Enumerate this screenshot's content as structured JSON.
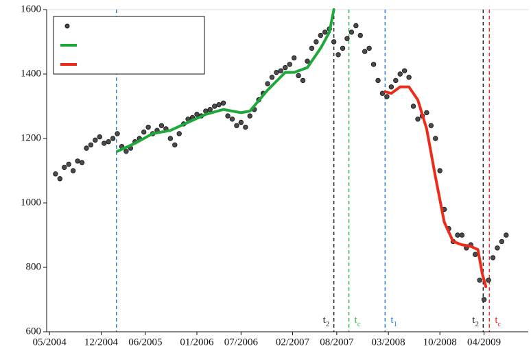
{
  "chart_data": {
    "type": "scatter",
    "xlim": [
      2004.3,
      2009.75
    ],
    "ylim": [
      600,
      1600
    ],
    "yticks": [
      600,
      800,
      1000,
      1200,
      1400,
      1600
    ],
    "xticks": [
      {
        "value": 2004.333,
        "label": "05/2004"
      },
      {
        "value": 2004.917,
        "label": "12/2004"
      },
      {
        "value": 2005.417,
        "label": "06/2005"
      },
      {
        "value": 2006.0,
        "label": "01/2006"
      },
      {
        "value": 2006.5,
        "label": "07/2006"
      },
      {
        "value": 2007.083,
        "label": "02/2007"
      },
      {
        "value": 2007.583,
        "label": "08/2007"
      },
      {
        "value": 2008.167,
        "label": "03/2008"
      },
      {
        "value": 2008.75,
        "label": "10/2008"
      },
      {
        "value": 2009.25,
        "label": "04/2009"
      }
    ],
    "series": [
      {
        "type": "scatter",
        "color": "#4a4a4a",
        "x": [
          2004.4,
          2004.45,
          2004.5,
          2004.55,
          2004.6,
          2004.65,
          2004.7,
          2004.75,
          2004.8,
          2004.85,
          2004.9,
          2004.95,
          2005.0,
          2005.05,
          2005.1,
          2005.15,
          2005.2,
          2005.25,
          2005.3,
          2005.35,
          2005.4,
          2005.45,
          2005.5,
          2005.55,
          2005.6,
          2005.65,
          2005.7,
          2005.75,
          2005.8,
          2005.85,
          2005.9,
          2005.95,
          2006.0,
          2006.05,
          2006.1,
          2006.15,
          2006.2,
          2006.25,
          2006.3,
          2006.35,
          2006.4,
          2006.45,
          2006.5,
          2006.55,
          2006.6,
          2006.65,
          2006.7,
          2006.75,
          2006.8,
          2006.85,
          2006.9,
          2006.95,
          2007.0,
          2007.05,
          2007.1,
          2007.15,
          2007.2,
          2007.25,
          2007.3,
          2007.35,
          2007.4,
          2007.45,
          2007.5,
          2007.55,
          2007.6,
          2007.65,
          2007.7,
          2007.75,
          2007.8,
          2007.85,
          2007.9,
          2007.95,
          2008.0,
          2008.05,
          2008.1,
          2008.15,
          2008.2,
          2008.25,
          2008.3,
          2008.35,
          2008.4,
          2008.45,
          2008.5,
          2008.55,
          2008.6,
          2008.65,
          2008.7,
          2008.75,
          2008.8,
          2008.85,
          2008.9,
          2008.95,
          2009.0,
          2009.05,
          2009.1,
          2009.15,
          2009.2,
          2009.25,
          2009.3,
          2009.35,
          2009.4,
          2009.45,
          2009.5
        ],
        "values": [
          1090,
          1075,
          1110,
          1120,
          1100,
          1130,
          1125,
          1170,
          1180,
          1195,
          1205,
          1185,
          1190,
          1200,
          1215,
          1175,
          1160,
          1170,
          1190,
          1200,
          1220,
          1235,
          1215,
          1225,
          1240,
          1230,
          1200,
          1180,
          1215,
          1245,
          1260,
          1265,
          1275,
          1270,
          1285,
          1290,
          1300,
          1305,
          1310,
          1270,
          1260,
          1240,
          1250,
          1235,
          1270,
          1290,
          1320,
          1340,
          1370,
          1390,
          1405,
          1410,
          1420,
          1430,
          1450,
          1395,
          1380,
          1440,
          1480,
          1500,
          1520,
          1530,
          1540,
          1500,
          1460,
          1480,
          1510,
          1530,
          1550,
          1520,
          1470,
          1480,
          1430,
          1380,
          1340,
          1330,
          1360,
          1380,
          1400,
          1410,
          1390,
          1300,
          1260,
          1270,
          1280,
          1240,
          1200,
          1100,
          980,
          920,
          880,
          900,
          900,
          860,
          870,
          840,
          760,
          700,
          760,
          830,
          860,
          880,
          900
        ]
      },
      {
        "type": "line",
        "color": "#1fa83a",
        "x": [
          2005.1,
          2005.3,
          2005.5,
          2005.7,
          2005.9,
          2006.1,
          2006.3,
          2006.5,
          2006.6,
          2006.8,
          2007.0,
          2007.1,
          2007.25,
          2007.4,
          2007.5,
          2007.55
        ],
        "values": [
          1160,
          1185,
          1215,
          1225,
          1250,
          1275,
          1290,
          1280,
          1285,
          1350,
          1405,
          1405,
          1420,
          1480,
          1530,
          1600
        ]
      },
      {
        "type": "line",
        "color": "#ee2a1a",
        "x": [
          2008.13,
          2008.2,
          2008.3,
          2008.4,
          2008.5,
          2008.6,
          2008.7,
          2008.8,
          2008.9,
          2009.0,
          2009.1,
          2009.18,
          2009.23,
          2009.27
        ],
        "values": [
          1345,
          1340,
          1360,
          1360,
          1320,
          1230,
          1080,
          940,
          880,
          870,
          865,
          855,
          780,
          740
        ]
      }
    ],
    "markers": [
      {
        "x": 2005.09,
        "color": "#2f7fd0"
      },
      {
        "x": 2007.55,
        "color": "#222222",
        "text": "t",
        "sub": "2"
      },
      {
        "x": 2007.72,
        "color": "#2fb84a",
        "text": "t",
        "sub": "c"
      },
      {
        "x": 2008.13,
        "color": "#2f7fd0",
        "text": "t",
        "sub": "1"
      },
      {
        "x": 2009.24,
        "color": "#222222",
        "text": "t",
        "sub": "2"
      },
      {
        "x": 2009.31,
        "color": "#ee2a1a",
        "text": "t",
        "sub": "c"
      }
    ]
  }
}
